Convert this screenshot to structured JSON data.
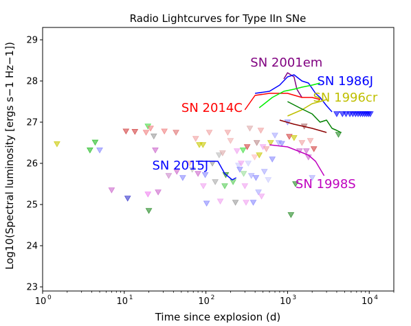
{
  "chart_data": {
    "type": "line",
    "title": "Radio Lightcurves for Type IIn SNe",
    "xlabel": "Time since explosion (d)",
    "ylabel": "Log10(Spectral luminosity [ergs s−1 Hz−1])",
    "xscale": "log",
    "xlim": [
      1,
      20000
    ],
    "ylim": [
      22.9,
      29.3
    ],
    "x_ticks": [
      {
        "value": 1,
        "base": "10",
        "exp": "0"
      },
      {
        "value": 10,
        "base": "10",
        "exp": "1"
      },
      {
        "value": 100,
        "base": "10",
        "exp": "2"
      },
      {
        "value": 1000,
        "base": "10",
        "exp": "3"
      },
      {
        "value": 10000,
        "base": "10",
        "exp": "4"
      }
    ],
    "y_ticks": [
      "23",
      "24",
      "25",
      "26",
      "27",
      "28",
      "29"
    ],
    "grid": false,
    "legend": "none",
    "series": [
      {
        "name": "SN 2001em",
        "color": "#800080",
        "label_at": [
          350,
          28.35
        ],
        "x": [
          900,
          1000,
          1200,
          1300,
          1500
        ],
        "y": [
          28.05,
          28.2,
          28.1,
          27.8,
          27.6
        ]
      },
      {
        "name": "SN 1986J",
        "color": "#0000ff",
        "label_at": [
          2300,
          27.9
        ],
        "x": [
          400,
          600,
          800,
          1000,
          1200,
          1500,
          1800,
          2200,
          2500,
          3000,
          3500
        ],
        "y": [
          27.7,
          27.75,
          27.9,
          28.1,
          28.15,
          28.0,
          27.95,
          27.7,
          27.6,
          27.4,
          27.25
        ],
        "upper_limits": {
          "x": [
            4000,
            4700,
            5200,
            5800,
            6300,
            6800,
            7300,
            7800,
            8300,
            8800,
            9300,
            9800,
            10300
          ],
          "y": [
            27.2,
            27.2,
            27.2,
            27.2,
            27.2,
            27.2,
            27.2,
            27.2,
            27.2,
            27.2,
            27.2,
            27.2,
            27.2
          ]
        }
      },
      {
        "name": "SN 1996cr",
        "color": "#bfbf00",
        "label_at": [
          2050,
          27.5
        ],
        "x": [
          1000,
          1500,
          2000,
          2500,
          3000
        ],
        "y": [
          27.15,
          27.3,
          27.45,
          27.5,
          27.55
        ]
      },
      {
        "name": "SN 2014C",
        "color": "#ff0000",
        "label_at": [
          50,
          27.25
        ],
        "x": [
          300,
          400,
          600,
          1000,
          1500,
          2000,
          2500
        ],
        "y": [
          27.3,
          27.65,
          27.7,
          27.7,
          27.6,
          27.6,
          27.55
        ]
      },
      {
        "name": "SN 1986J",
        "color": "#00ee00",
        "label_at": null,
        "x": [
          450,
          650,
          900,
          1200,
          1500,
          2000,
          2500
        ],
        "y": [
          27.35,
          27.6,
          27.75,
          27.8,
          27.85,
          27.9,
          27.95
        ]
      },
      {
        "name": "SN 1986J",
        "color": "#008000",
        "label_at": null,
        "x": [
          1000,
          1400,
          2000,
          2500,
          3000,
          3500,
          4000,
          4500
        ],
        "y": [
          27.5,
          27.35,
          27.2,
          27.0,
          27.05,
          26.85,
          26.8,
          26.75
        ]
      },
      {
        "name": "SN 1986J",
        "color": "#8b0000",
        "label_at": null,
        "x": [
          800,
          1200,
          2000,
          3000
        ],
        "y": [
          27.05,
          26.95,
          26.85,
          26.75
        ]
      },
      {
        "name": "SN 2015J",
        "color": "#0000ff",
        "label_at": [
          22,
          25.85
        ],
        "x": [
          75,
          90,
          140,
          170,
          210,
          235
        ],
        "y": [
          26.05,
          26.05,
          26.05,
          25.75,
          25.6,
          25.65
        ]
      },
      {
        "name": "SN 1998S",
        "color": "#bf00bf",
        "label_at": [
          1250,
          25.4
        ],
        "x": [
          600,
          1000,
          1800,
          2200,
          2800
        ],
        "y": [
          26.45,
          26.4,
          26.2,
          26.05,
          25.7
        ]
      }
    ],
    "upper_limit_points": [
      {
        "x": 1.5,
        "y": 26.47,
        "color": "#c8c800"
      },
      {
        "x": 3.8,
        "y": 26.32,
        "color": "#22bb22"
      },
      {
        "x": 4.4,
        "y": 26.51,
        "color": "#22bb22"
      },
      {
        "x": 5.0,
        "y": 26.32,
        "color": "#8888ff"
      },
      {
        "x": 7.0,
        "y": 25.35,
        "color": "#cc66cc"
      },
      {
        "x": 10.5,
        "y": 26.78,
        "color": "#d24040"
      },
      {
        "x": 11.0,
        "y": 25.15,
        "color": "#3333cc"
      },
      {
        "x": 13.5,
        "y": 26.77,
        "color": "#d24040"
      },
      {
        "x": 18.5,
        "y": 26.75,
        "color": "#f08080"
      },
      {
        "x": 19.5,
        "y": 26.9,
        "color": "#44dd44"
      },
      {
        "x": 19.5,
        "y": 25.25,
        "color": "#f080f0"
      },
      {
        "x": 20.0,
        "y": 24.85,
        "color": "#228822"
      },
      {
        "x": 21.0,
        "y": 26.85,
        "color": "#f08080"
      },
      {
        "x": 23.0,
        "y": 26.66,
        "color": "#999999"
      },
      {
        "x": 24.0,
        "y": 26.32,
        "color": "#cc66cc"
      },
      {
        "x": 26.0,
        "y": 25.3,
        "color": "#cc66cc"
      },
      {
        "x": 31.0,
        "y": 26.78,
        "color": "#f08080"
      },
      {
        "x": 35.0,
        "y": 25.7,
        "color": "#cc88cc"
      },
      {
        "x": 43.0,
        "y": 26.75,
        "color": "#e07070"
      },
      {
        "x": 44.0,
        "y": 25.8,
        "color": "#cc66cc"
      },
      {
        "x": 52.0,
        "y": 25.65,
        "color": "#8888ff"
      },
      {
        "x": 63.0,
        "y": 26.0,
        "color": "#f0b0b0"
      },
      {
        "x": 68.0,
        "y": 25.85,
        "color": "#bbbbbb"
      },
      {
        "x": 75.0,
        "y": 26.6,
        "color": "#f0a0a0"
      },
      {
        "x": 80.0,
        "y": 25.75,
        "color": "#cc66cc"
      },
      {
        "x": 83.0,
        "y": 26.45,
        "color": "#c8c800"
      },
      {
        "x": 92.0,
        "y": 26.45,
        "color": "#c8c800"
      },
      {
        "x": 93.0,
        "y": 25.45,
        "color": "#f0a0f0"
      },
      {
        "x": 98.0,
        "y": 25.72,
        "color": "#8888ff"
      },
      {
        "x": 102.0,
        "y": 25.03,
        "color": "#8888ff"
      },
      {
        "x": 110.0,
        "y": 26.75,
        "color": "#f0a0a0"
      },
      {
        "x": 120.0,
        "y": 26.0,
        "color": "#999999"
      },
      {
        "x": 130.0,
        "y": 25.55,
        "color": "#aaaaaa"
      },
      {
        "x": 145.0,
        "y": 26.2,
        "color": "#bbbbbb"
      },
      {
        "x": 150.0,
        "y": 25.08,
        "color": "#f0a0f0"
      },
      {
        "x": 160.0,
        "y": 26.25,
        "color": "#ddaaaa"
      },
      {
        "x": 170.0,
        "y": 25.45,
        "color": "#55cc55"
      },
      {
        "x": 175.0,
        "y": 25.72,
        "color": "#228822"
      },
      {
        "x": 185.0,
        "y": 26.75,
        "color": "#f0a0a0"
      },
      {
        "x": 200.0,
        "y": 26.55,
        "color": "#f0b0b0"
      },
      {
        "x": 215.0,
        "y": 25.55,
        "color": "#55cc55"
      },
      {
        "x": 230.0,
        "y": 25.05,
        "color": "#999999"
      },
      {
        "x": 240.0,
        "y": 26.3,
        "color": "#f0a0f0"
      },
      {
        "x": 250.0,
        "y": 25.95,
        "color": "#ccccff"
      },
      {
        "x": 260.0,
        "y": 25.85,
        "color": "#8888ff"
      },
      {
        "x": 270.0,
        "y": 26.0,
        "color": "#f0a0f0"
      },
      {
        "x": 285.0,
        "y": 26.32,
        "color": "#44dd44"
      },
      {
        "x": 290.0,
        "y": 25.75,
        "color": "#99dd99"
      },
      {
        "x": 300.0,
        "y": 25.45,
        "color": "#f0a0f0"
      },
      {
        "x": 310.0,
        "y": 25.05,
        "color": "#f0a0f0"
      },
      {
        "x": 320.0,
        "y": 26.4,
        "color": "#d24040"
      },
      {
        "x": 330.0,
        "y": 26.0,
        "color": "#ccccff"
      },
      {
        "x": 345.0,
        "y": 26.85,
        "color": "#ddaaaa"
      },
      {
        "x": 360.0,
        "y": 25.7,
        "color": "#aaaaff"
      },
      {
        "x": 380.0,
        "y": 25.05,
        "color": "#8888ff"
      },
      {
        "x": 395.0,
        "y": 26.15,
        "color": "#ffbbbb"
      },
      {
        "x": 410.0,
        "y": 25.65,
        "color": "#8888ff"
      },
      {
        "x": 420.0,
        "y": 26.5,
        "color": "#bb8888"
      },
      {
        "x": 440.0,
        "y": 25.3,
        "color": "#aaaaff"
      },
      {
        "x": 450.0,
        "y": 26.2,
        "color": "#c8c800"
      },
      {
        "x": 470.0,
        "y": 26.8,
        "color": "#f0a0a0"
      },
      {
        "x": 480.0,
        "y": 25.2,
        "color": "#f0a0f0"
      },
      {
        "x": 500.0,
        "y": 26.4,
        "color": "#f0a0f0"
      },
      {
        "x": 520.0,
        "y": 25.8,
        "color": "#aaaaff"
      },
      {
        "x": 550.0,
        "y": 26.35,
        "color": "#f0a0a0"
      },
      {
        "x": 580.0,
        "y": 25.6,
        "color": "#ccccff"
      },
      {
        "x": 620.0,
        "y": 26.5,
        "color": "#c8c800"
      },
      {
        "x": 650.0,
        "y": 26.1,
        "color": "#8888ff"
      },
      {
        "x": 700.0,
        "y": 26.68,
        "color": "#aaaaff"
      },
      {
        "x": 780.0,
        "y": 26.5,
        "color": "#aaaaff"
      },
      {
        "x": 850.0,
        "y": 26.48,
        "color": "#8888ff"
      },
      {
        "x": 1000.0,
        "y": 27.0,
        "color": "#8888ff"
      },
      {
        "x": 1050.0,
        "y": 26.65,
        "color": "#d24040"
      },
      {
        "x": 1100.0,
        "y": 24.75,
        "color": "#228822"
      },
      {
        "x": 1200.0,
        "y": 26.62,
        "color": "#c8c800"
      },
      {
        "x": 1250.0,
        "y": 25.5,
        "color": "#228822"
      },
      {
        "x": 1400.0,
        "y": 26.3,
        "color": "#cc66cc"
      },
      {
        "x": 1500.0,
        "y": 26.5,
        "color": "#f0a0a0"
      },
      {
        "x": 1600.0,
        "y": 26.9,
        "color": "#aa6666"
      },
      {
        "x": 1700.0,
        "y": 26.3,
        "color": "#cc66cc"
      },
      {
        "x": 1800.0,
        "y": 26.15,
        "color": "#cc66cc"
      },
      {
        "x": 1900.0,
        "y": 26.55,
        "color": "#f0a0a0"
      },
      {
        "x": 2000.0,
        "y": 25.65,
        "color": "#aaaaff"
      },
      {
        "x": 2100.0,
        "y": 26.35,
        "color": "#d24040"
      },
      {
        "x": 4200.0,
        "y": 26.7,
        "color": "#228822"
      }
    ]
  }
}
